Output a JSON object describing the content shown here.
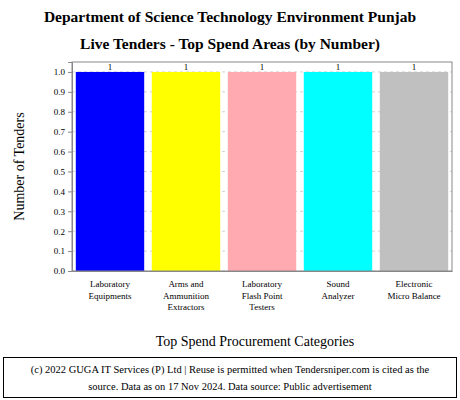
{
  "chart_data": {
    "type": "bar",
    "title": "Department of Science Technology Environment Punjab",
    "subtitle": "Live Tenders - Top Spend Areas (by Number)",
    "x_label": "Top Spend Procurement Categories",
    "y_label": "Number of Tenders",
    "categories": [
      "Laboratory Equipments",
      "Arms and Ammunition Extractors",
      "Laboratory Flash Point Testers",
      "Sound Analyzer",
      "Electronic Micro Balance"
    ],
    "values": [
      1,
      1,
      1,
      1,
      1
    ],
    "colors": [
      "#0000ff",
      "#ffff00",
      "#ffaab0",
      "#00ffff",
      "#c0c0c0"
    ],
    "ylim": [
      0,
      1.05
    ],
    "yticks": [
      {
        "value": 0,
        "label": "0.0"
      },
      {
        "value": 0.1,
        "label": "0.1"
      },
      {
        "value": 0.2,
        "label": "0.2"
      },
      {
        "value": 0.3,
        "label": "0.3"
      },
      {
        "value": 0.4,
        "label": "0.4"
      },
      {
        "value": 0.5,
        "label": "0.5"
      },
      {
        "value": 0.6,
        "label": "0.6"
      },
      {
        "value": 0.7,
        "label": "0.7"
      },
      {
        "value": 0.8,
        "label": "0.8"
      },
      {
        "value": 0.9,
        "label": "0.9"
      },
      {
        "value": 1,
        "label": "1.0"
      }
    ],
    "grid": true,
    "data_labels": true,
    "footer": "(c) 2022 GUGA IT Services (P) Ltd | Reuse is permitted when Tendersniper.com is cited as the source. Data as on 17 Nov 2024. Data source: Public advertisement"
  }
}
